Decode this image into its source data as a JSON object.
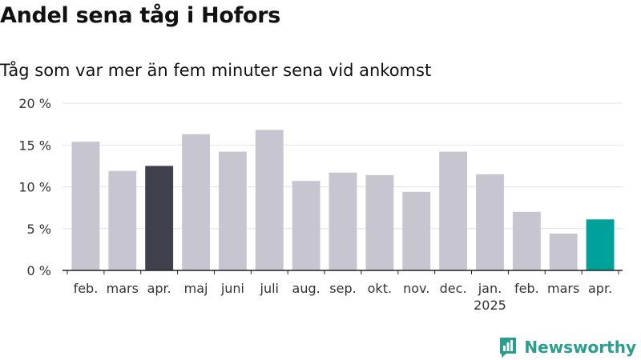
{
  "chart_data": {
    "type": "bar",
    "title": "Andel sena tåg i Hofors",
    "subtitle": "Tåg som var mer än fem minuter sena vid ankomst",
    "categories": [
      "feb.",
      "mars",
      "apr.",
      "maj",
      "juni",
      "juli",
      "aug.",
      "sep.",
      "okt.",
      "nov.",
      "dec.",
      "jan.",
      "feb.",
      "mars",
      "apr."
    ],
    "year_labels": [
      "",
      "",
      "",
      "",
      "",
      "",
      "",
      "",
      "",
      "",
      "",
      "2025",
      "",
      "",
      ""
    ],
    "values": [
      15.4,
      11.9,
      12.5,
      16.3,
      14.2,
      16.8,
      10.7,
      11.7,
      11.4,
      9.4,
      14.2,
      11.5,
      7.0,
      4.4,
      6.1
    ],
    "ylim": [
      0,
      20
    ],
    "yticks": [
      0,
      5,
      10,
      15,
      20
    ],
    "ytick_labels": [
      "0 %",
      "5 %",
      "10 %",
      "15 %",
      "20 %"
    ],
    "grid": true,
    "colors": {
      "default": "#c7c6d0",
      "highlight_dark": "#403f4c",
      "highlight_accent": "#00a19a"
    },
    "bar_colors": [
      "default",
      "default",
      "highlight_dark",
      "default",
      "default",
      "default",
      "default",
      "default",
      "default",
      "default",
      "default",
      "default",
      "default",
      "default",
      "highlight_accent"
    ]
  },
  "brand": {
    "name": "Newsworthy",
    "icon": "newsworthy-logo-icon",
    "color": "#2a9d8f"
  }
}
